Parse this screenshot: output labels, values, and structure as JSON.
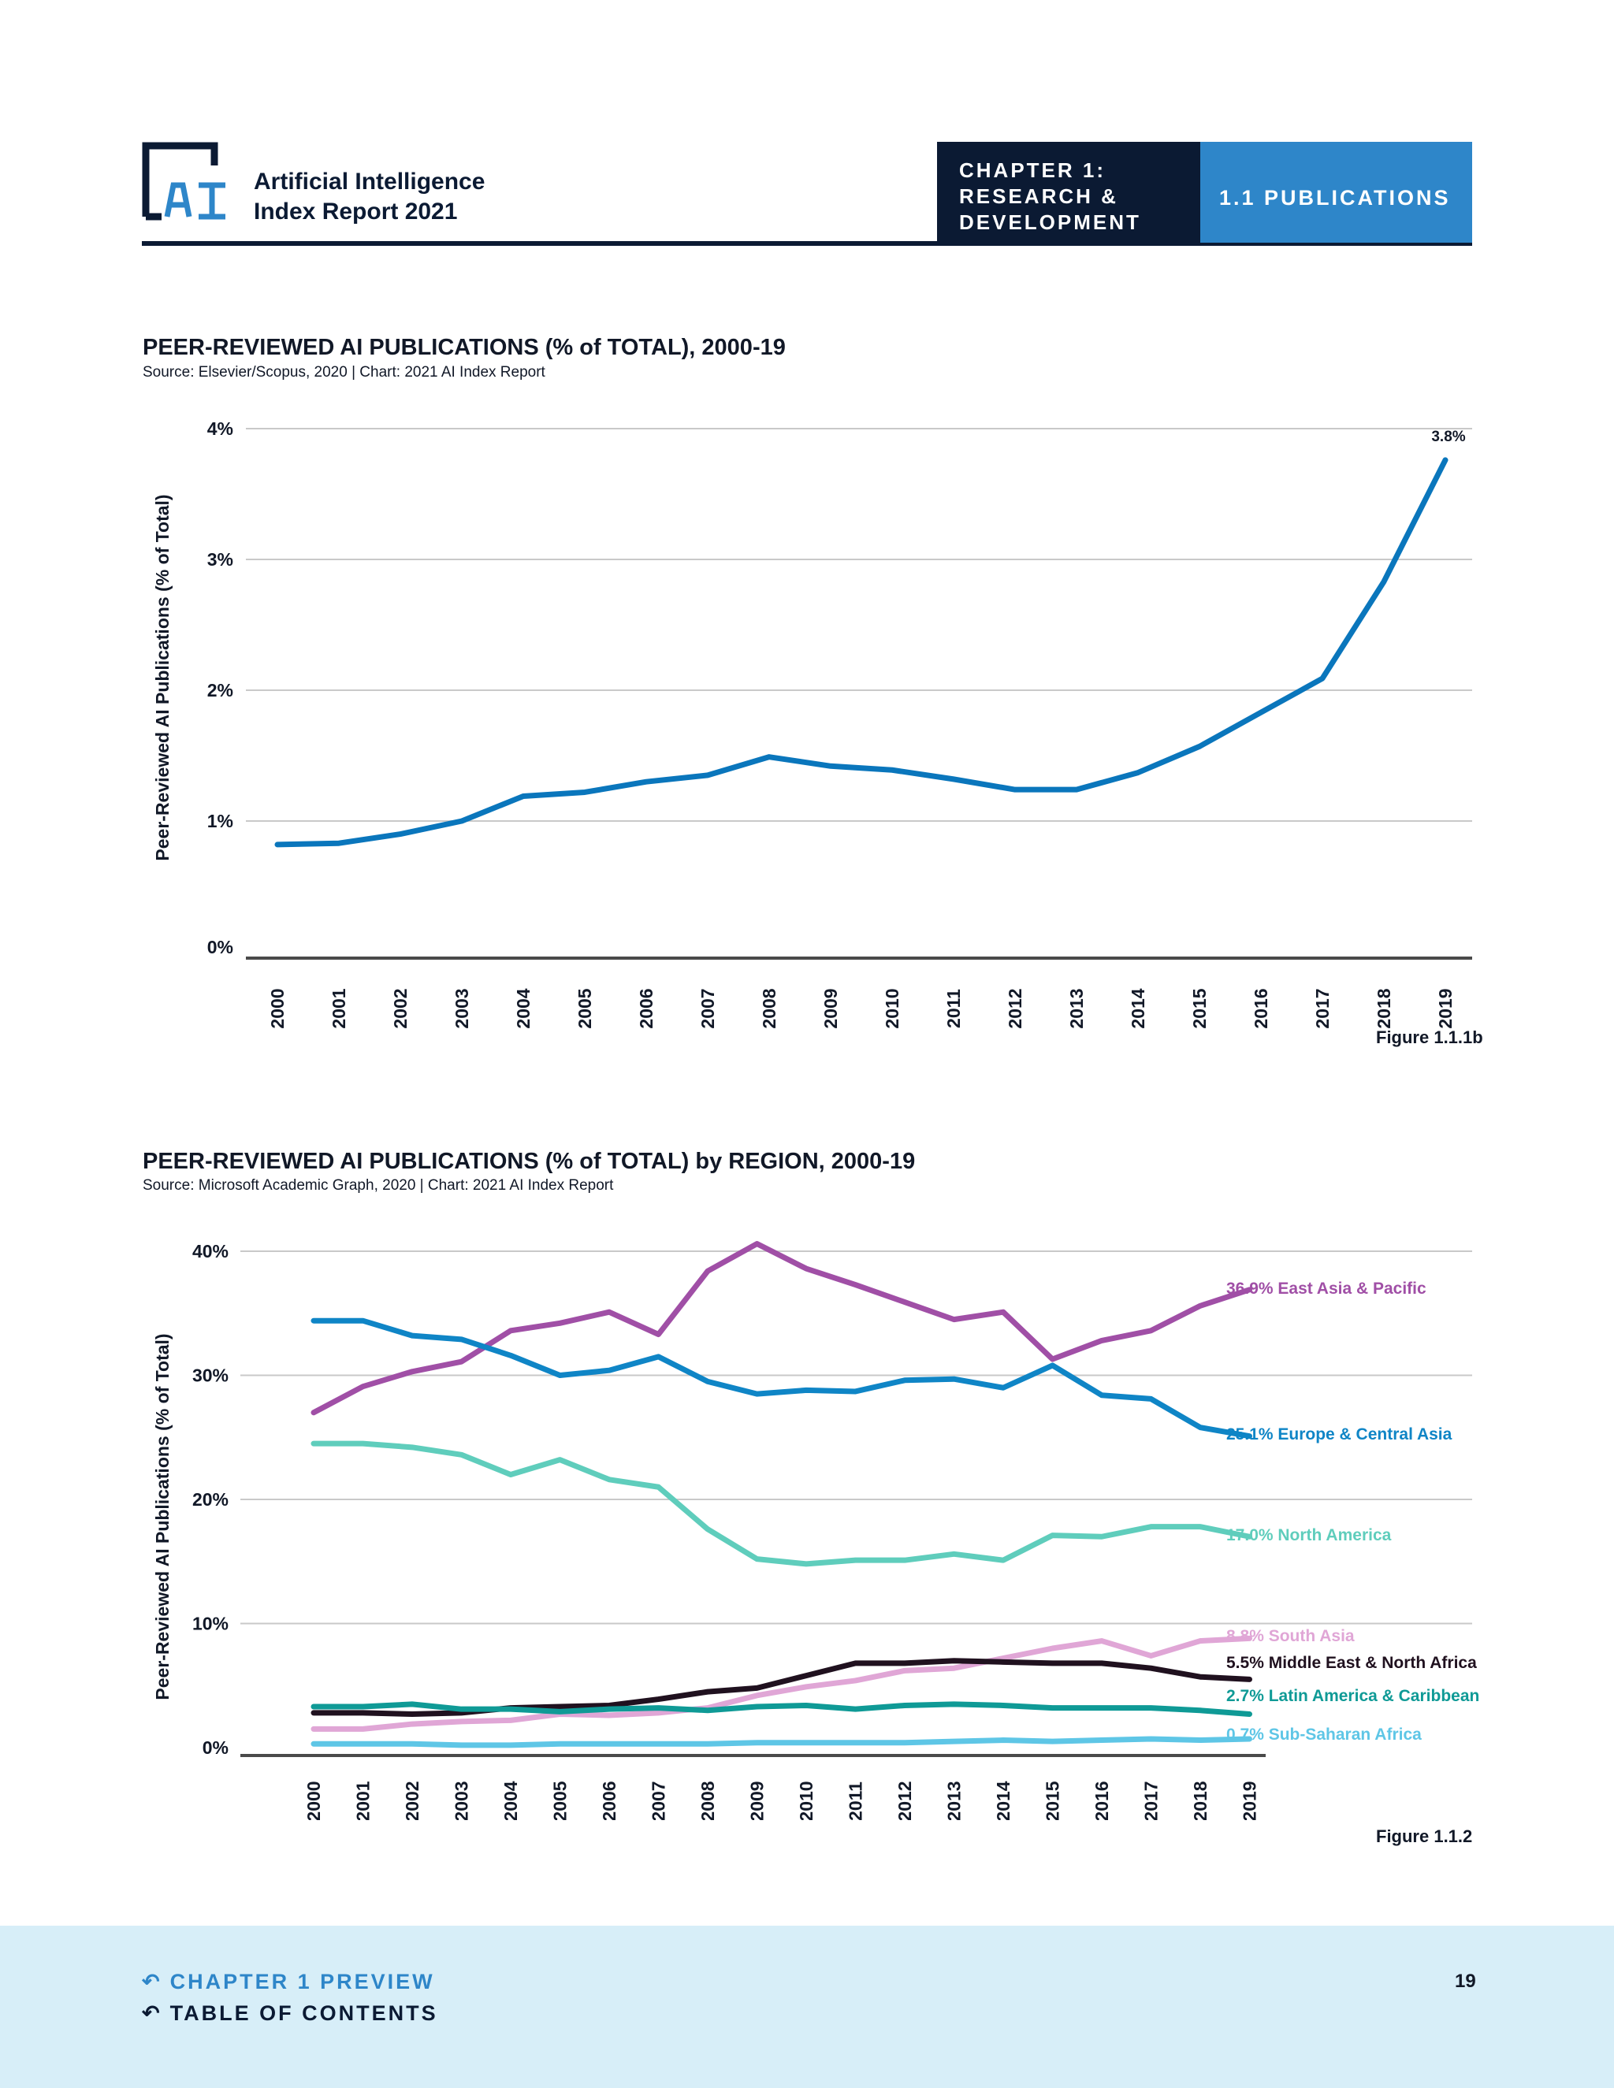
{
  "header": {
    "report_title_line1": "Artificial Intelligence",
    "report_title_line2": "Index Report 2021",
    "chapter_line1": "CHAPTER 1:",
    "chapter_line2": "RESEARCH &",
    "chapter_line3": "DEVELOPMENT",
    "section": "1.1 PUBLICATIONS"
  },
  "charts": {
    "chart1": {
      "title": "PEER-REVIEWED AI PUBLICATIONS (% of TOTAL), 2000-19",
      "source": "Source: Elsevier/Scopus, 2020 | Chart: 2021 AI Index Report",
      "figure": "Figure 1.1.1b"
    },
    "chart2": {
      "title": "PEER-REVIEWED AI PUBLICATIONS (% of TOTAL) by REGION, 2000-19",
      "source": "Source: Microsoft Academic Graph, 2020 | Chart: 2021 AI Index Report",
      "figure": "Figure 1.1.2"
    }
  },
  "chart_data": [
    {
      "type": "line",
      "title": "PEER-REVIEWED AI PUBLICATIONS (% of TOTAL), 2000-19",
      "ylabel": "Peer-Reviewed AI Publications (% of Total)",
      "x": [
        "2000",
        "2001",
        "2002",
        "2003",
        "2004",
        "2005",
        "2006",
        "2007",
        "2008",
        "2009",
        "2010",
        "2011",
        "2012",
        "2013",
        "2014",
        "2015",
        "2016",
        "2017",
        "2018",
        "2019"
      ],
      "yticks": [
        "0%",
        "1%",
        "2%",
        "3%",
        "4%"
      ],
      "ylim": [
        0,
        4
      ],
      "series": [
        {
          "color": "#0a76bc",
          "values": [
            0.82,
            0.83,
            0.9,
            1.0,
            1.19,
            1.22,
            1.3,
            1.35,
            1.49,
            1.42,
            1.39,
            1.32,
            1.24,
            1.24,
            1.37,
            1.57,
            1.83,
            2.09,
            2.83,
            3.76
          ],
          "end_label": "3.8%"
        }
      ],
      "grid": true
    },
    {
      "type": "line",
      "title": "PEER-REVIEWED AI PUBLICATIONS (% of TOTAL) by REGION, 2000-19",
      "ylabel": "Peer-Reviewed AI Publications (% of Total)",
      "x": [
        "2000",
        "2001",
        "2002",
        "2003",
        "2004",
        "2005",
        "2006",
        "2007",
        "2008",
        "2009",
        "2010",
        "2011",
        "2012",
        "2013",
        "2014",
        "2015",
        "2016",
        "2017",
        "2018",
        "2019"
      ],
      "yticks": [
        "0%",
        "10%",
        "20%",
        "30%",
        "40%"
      ],
      "ylim": [
        0,
        40
      ],
      "grid": true,
      "series": [
        {
          "label": "36.9% East Asia & Pacific",
          "color": "#a04fa6",
          "values": [
            27.0,
            29.1,
            30.3,
            31.1,
            33.6,
            34.2,
            35.1,
            33.3,
            38.4,
            40.6,
            38.6,
            37.3,
            35.9,
            34.5,
            35.1,
            31.3,
            32.8,
            33.6,
            35.6,
            36.9
          ]
        },
        {
          "label": "25.1% Europe & Central Asia",
          "color": "#0f85c6",
          "values": [
            34.4,
            34.4,
            33.2,
            32.9,
            31.6,
            30.0,
            30.4,
            31.5,
            29.5,
            28.5,
            28.8,
            28.7,
            29.6,
            29.7,
            29.0,
            30.8,
            28.4,
            28.1,
            25.8,
            25.1
          ]
        },
        {
          "label": "17.0% North America",
          "color": "#5fcdbc",
          "values": [
            24.5,
            24.5,
            24.2,
            23.6,
            22.0,
            23.2,
            21.6,
            21.0,
            17.6,
            15.2,
            14.8,
            15.1,
            15.1,
            15.6,
            15.1,
            17.1,
            17.0,
            17.8,
            17.8,
            17.0
          ]
        },
        {
          "label": "8.8% South Asia",
          "color": "#e0a6d6",
          "values": [
            1.5,
            1.5,
            1.9,
            2.1,
            2.2,
            2.7,
            2.6,
            2.8,
            3.2,
            4.2,
            4.9,
            5.4,
            6.2,
            6.4,
            7.2,
            8.0,
            8.6,
            7.4,
            8.6,
            8.8
          ]
        },
        {
          "label": "5.5% Middle East & North Africa",
          "color": "#20111f",
          "values": [
            2.8,
            2.8,
            2.7,
            2.8,
            3.2,
            3.3,
            3.4,
            3.9,
            4.5,
            4.8,
            5.8,
            6.8,
            6.8,
            7.0,
            6.9,
            6.8,
            6.8,
            6.4,
            5.7,
            5.5
          ]
        },
        {
          "label": "2.7% Latin America & Caribbean",
          "color": "#0f9a96",
          "values": [
            3.3,
            3.3,
            3.5,
            3.1,
            3.1,
            2.9,
            3.1,
            3.2,
            3.0,
            3.3,
            3.4,
            3.1,
            3.4,
            3.5,
            3.4,
            3.2,
            3.2,
            3.2,
            3.0,
            2.7
          ]
        },
        {
          "label": "0.7% Sub-Saharan Africa",
          "color": "#5ec6e6",
          "values": [
            0.3,
            0.3,
            0.3,
            0.2,
            0.2,
            0.3,
            0.3,
            0.3,
            0.3,
            0.4,
            0.4,
            0.4,
            0.4,
            0.5,
            0.6,
            0.5,
            0.6,
            0.7,
            0.6,
            0.7
          ]
        }
      ]
    }
  ],
  "footer": {
    "chapter_preview": "CHAPTER 1 PREVIEW",
    "table_of_contents": "TABLE OF CONTENTS",
    "page_number": "19"
  }
}
